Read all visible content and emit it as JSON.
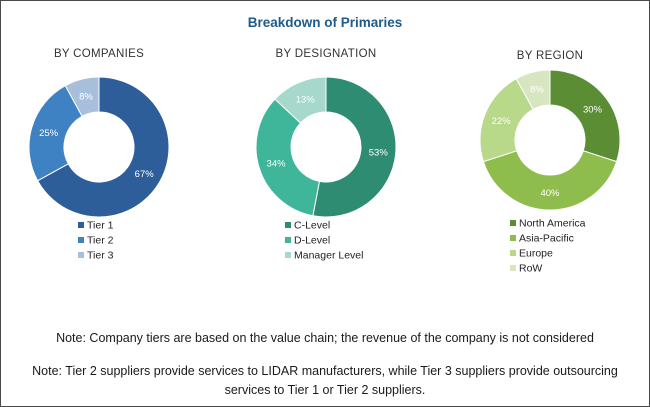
{
  "title": "Breakdown of Primaries",
  "colors": {
    "title": "#1f5b8a",
    "tier1": "#2e5e99",
    "tier2": "#3f82c4",
    "tier3": "#a8bfdc",
    "c_level": "#2e8c73",
    "d_level": "#3fb59a",
    "manager_level": "#a6d8cb",
    "north_america": "#5b8e34",
    "asia_pacific": "#8fbd4d",
    "europe": "#b8d98a",
    "row": "#d7e5c0"
  },
  "chart_data": [
    {
      "type": "pie",
      "title": "BY COMPANIES",
      "slices": [
        {
          "label": "Tier 1",
          "value": 67,
          "color": "#2e5e99"
        },
        {
          "label": "Tier 2",
          "value": 25,
          "color": "#3f82c4"
        },
        {
          "label": "Tier 3",
          "value": 8,
          "color": "#a8bfdc"
        }
      ]
    },
    {
      "type": "pie",
      "title": "BY DESIGNATION",
      "slices": [
        {
          "label": "C-Level",
          "value": 53,
          "color": "#2e8c73"
        },
        {
          "label": "D-Level",
          "value": 34,
          "color": "#3fb59a"
        },
        {
          "label": "Manager Level",
          "value": 13,
          "color": "#a6d8cb"
        }
      ]
    },
    {
      "type": "pie",
      "title": "BY REGION",
      "slices": [
        {
          "label": "North America",
          "value": 30,
          "color": "#5b8e34"
        },
        {
          "label": "Asia-Pacific",
          "value": 40,
          "color": "#8fbd4d"
        },
        {
          "label": "Europe",
          "value": 22,
          "color": "#b8d98a"
        },
        {
          "label": "RoW",
          "value": 8,
          "color": "#d7e5c0"
        }
      ]
    }
  ],
  "notes": {
    "note1": "Note: Company tiers are based on the value chain; the revenue of the company is not considered",
    "note2": "Note: Tier 2 suppliers provide services to LIDAR manufacturers, while Tier 3 suppliers provide outsourcing services to Tier 1 or Tier 2 suppliers."
  }
}
